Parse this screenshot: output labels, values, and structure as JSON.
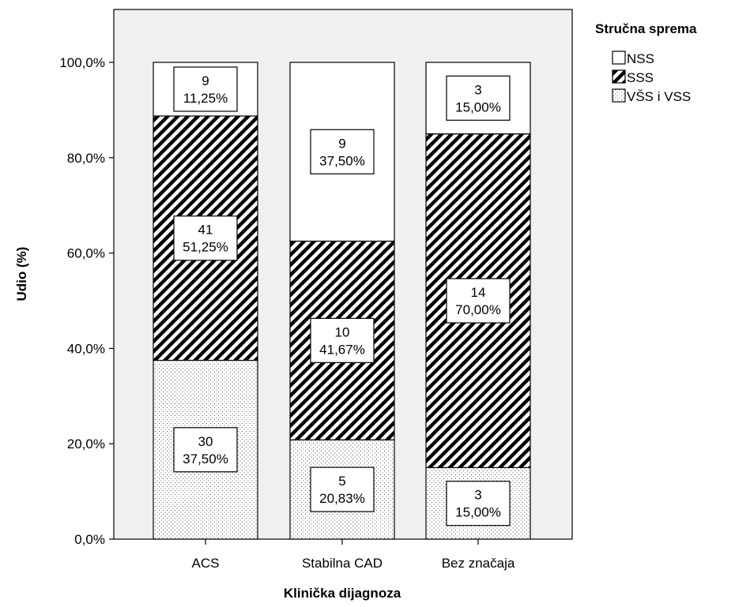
{
  "chart_data": {
    "type": "bar",
    "stacked": true,
    "categories": [
      "ACS",
      "Stabilna CAD",
      "Bez značaja"
    ],
    "series": [
      {
        "name": "VŠS i VSS",
        "pattern": "dots",
        "counts": [
          30,
          5,
          3
        ],
        "values": [
          37.5,
          20.83,
          15.0
        ],
        "labels": [
          "37,50%",
          "20,83%",
          "15,00%"
        ]
      },
      {
        "name": "SSS",
        "pattern": "hatch",
        "counts": [
          41,
          10,
          14
        ],
        "values": [
          51.25,
          41.67,
          70.0
        ],
        "labels": [
          "51,25%",
          "41,67%",
          "70,00%"
        ]
      },
      {
        "name": "NSS",
        "pattern": "empty",
        "counts": [
          9,
          9,
          3
        ],
        "values": [
          11.25,
          37.5,
          15.0
        ],
        "labels": [
          "11,25%",
          "37,50%",
          "15,00%"
        ]
      }
    ],
    "xlabel": "Klinička dijagnoza",
    "ylabel": "Udio (%)",
    "ylim": [
      0,
      100
    ],
    "yticks": [
      "0,0%",
      "20,0%",
      "40,0%",
      "60,0%",
      "80,0%",
      "100,0%"
    ],
    "legend": {
      "title": "Stručna sprema",
      "items": [
        "NSS",
        "SSS",
        "VŠS i VSS"
      ],
      "placement": "top-right"
    },
    "background": "#f0f0f0",
    "grid": false
  }
}
